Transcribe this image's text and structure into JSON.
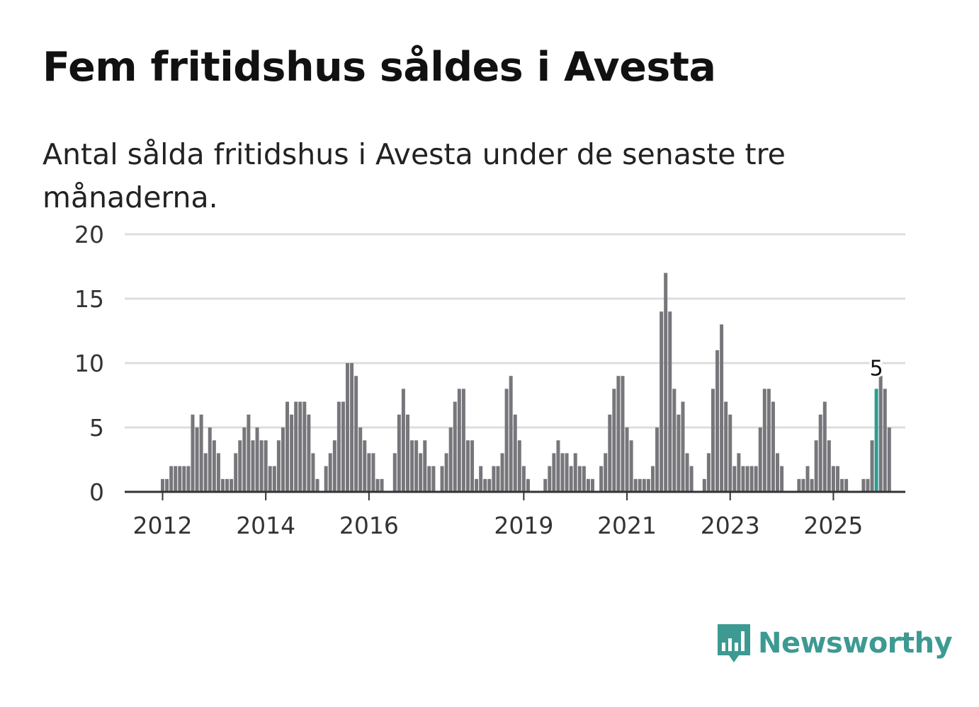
{
  "header": {
    "title": "Fem fritidshus såldes i Avesta",
    "subtitle": "Antal sålda fritidshus i Avesta under de senaste tre månaderna."
  },
  "brand": {
    "name": "Newsworthy",
    "logo_icon": "bar-chart-speech-bubble-icon",
    "color": "#3c9a92"
  },
  "colors": {
    "bar": "#77767b",
    "highlight": "#2a9d97",
    "grid": "#dddddd",
    "axis": "#333333"
  },
  "chart_data": {
    "type": "bar",
    "title": "Fem fritidshus såldes i Avesta",
    "xlabel": "",
    "ylabel": "",
    "ylim": [
      0,
      20
    ],
    "yticks": [
      0,
      5,
      10,
      15,
      20
    ],
    "grid": true,
    "start": "2011-03",
    "frequency": "monthly",
    "xtick_labels": [
      "2012",
      "2014",
      "2016",
      "2019",
      "2021",
      "2023",
      "2025"
    ],
    "xtick_months": [
      "2012-01",
      "2014-01",
      "2016-01",
      "2019-01",
      "2021-01",
      "2023-01",
      "2025-01"
    ],
    "values": [
      0,
      0,
      0,
      0,
      0,
      0,
      0,
      0,
      0,
      0,
      1,
      1,
      2,
      2,
      2,
      2,
      2,
      6,
      5,
      6,
      3,
      5,
      4,
      3,
      1,
      1,
      1,
      3,
      4,
      5,
      6,
      4,
      5,
      4,
      4,
      2,
      2,
      4,
      5,
      7,
      6,
      7,
      7,
      7,
      6,
      3,
      1,
      0,
      2,
      3,
      4,
      7,
      7,
      10,
      10,
      9,
      5,
      4,
      3,
      3,
      1,
      1,
      0,
      0,
      3,
      6,
      8,
      6,
      4,
      4,
      3,
      4,
      2,
      2,
      0,
      2,
      3,
      5,
      7,
      8,
      8,
      4,
      4,
      1,
      2,
      1,
      1,
      2,
      2,
      3,
      8,
      9,
      6,
      4,
      2,
      1,
      0,
      0,
      0,
      1,
      2,
      3,
      4,
      3,
      3,
      2,
      3,
      2,
      2,
      1,
      1,
      0,
      2,
      3,
      6,
      8,
      9,
      9,
      5,
      4,
      1,
      1,
      1,
      1,
      2,
      5,
      14,
      17,
      14,
      8,
      6,
      7,
      3,
      2,
      0,
      0,
      1,
      3,
      8,
      11,
      13,
      7,
      6,
      2,
      3,
      2,
      2,
      2,
      2,
      5,
      8,
      8,
      7,
      3,
      2,
      0,
      0,
      0,
      1,
      1,
      2,
      1,
      4,
      6,
      7,
      4,
      2,
      2,
      1,
      1,
      0,
      0,
      0,
      1,
      1,
      4,
      8,
      9,
      8,
      5
    ],
    "highlight_index": 176,
    "annotation": "5"
  }
}
